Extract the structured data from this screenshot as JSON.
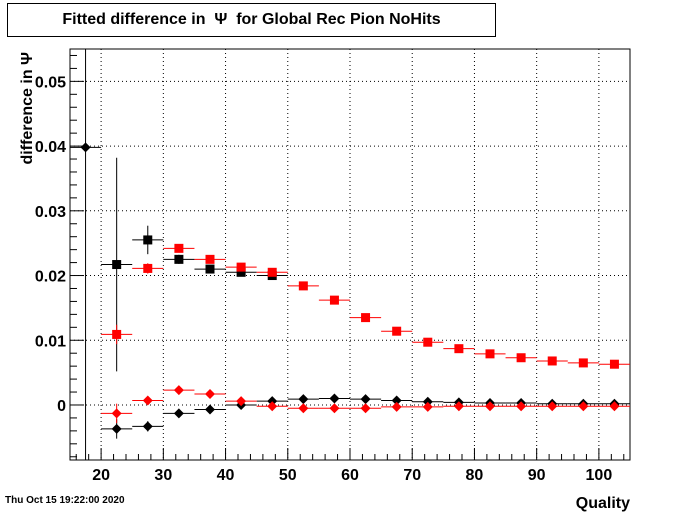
{
  "chart_data": {
    "type": "scatter",
    "title": "Fitted difference in  Ψ  for Global Rec Pion NoHits",
    "xlabel": "Quality",
    "ylabel": "difference in  Ψ",
    "xlim": [
      15,
      105
    ],
    "ylim": [
      -0.0085,
      0.055
    ],
    "x_ticks": [
      20,
      30,
      40,
      50,
      60,
      70,
      80,
      90,
      100
    ],
    "y_ticks": [
      0,
      0.01,
      0.02,
      0.03,
      0.04,
      0.05
    ],
    "y_tick_labels": [
      "0",
      "0.01",
      "0.02",
      "0.03",
      "0.04",
      "0.05"
    ],
    "grid": true,
    "series": [
      {
        "marker": "square",
        "color": "#000000",
        "points": [
          {
            "x": 22.5,
            "y": 0.0217,
            "xerr": 2.5,
            "yerr": 0.0165
          },
          {
            "x": 27.5,
            "y": 0.0255,
            "xerr": 2.5,
            "yerr": 0.0022
          },
          {
            "x": 32.5,
            "y": 0.0225,
            "xerr": 2.5,
            "yerr": 0.0007
          },
          {
            "x": 37.5,
            "y": 0.021,
            "xerr": 2.5,
            "yerr": 0.0005
          },
          {
            "x": 42.5,
            "y": 0.0205,
            "xerr": 2.5,
            "yerr": 0.0004
          },
          {
            "x": 47.5,
            "y": 0.02,
            "xerr": 2.5,
            "yerr": 0.0004
          }
        ]
      },
      {
        "marker": "square",
        "color": "#ff0000",
        "points": [
          {
            "x": 22.5,
            "y": 0.0109,
            "xerr": 2.5,
            "yerr": 0.0015
          },
          {
            "x": 27.5,
            "y": 0.0211,
            "xerr": 2.5,
            "yerr": 0.0008
          },
          {
            "x": 32.5,
            "y": 0.0242,
            "xerr": 2.5,
            "yerr": 0.0006
          },
          {
            "x": 37.5,
            "y": 0.0225,
            "xerr": 2.5,
            "yerr": 0.0004
          },
          {
            "x": 42.5,
            "y": 0.0213,
            "xerr": 2.5,
            "yerr": 0.0004
          },
          {
            "x": 47.5,
            "y": 0.0205,
            "xerr": 2.5,
            "yerr": 0.0003
          },
          {
            "x": 52.5,
            "y": 0.0184,
            "xerr": 2.5,
            "yerr": 0.0003
          },
          {
            "x": 57.5,
            "y": 0.0162,
            "xerr": 2.5,
            "yerr": 0.0003
          },
          {
            "x": 62.5,
            "y": 0.0135,
            "xerr": 2.5,
            "yerr": 0.0003
          },
          {
            "x": 67.5,
            "y": 0.0114,
            "xerr": 2.5,
            "yerr": 0.0003
          },
          {
            "x": 72.5,
            "y": 0.0097,
            "xerr": 2.5,
            "yerr": 0.0002
          },
          {
            "x": 77.5,
            "y": 0.0087,
            "xerr": 2.5,
            "yerr": 0.0002
          },
          {
            "x": 82.5,
            "y": 0.0079,
            "xerr": 2.5,
            "yerr": 0.0002
          },
          {
            "x": 87.5,
            "y": 0.0073,
            "xerr": 2.5,
            "yerr": 0.0002
          },
          {
            "x": 92.5,
            "y": 0.0068,
            "xerr": 2.5,
            "yerr": 0.0002
          },
          {
            "x": 97.5,
            "y": 0.0065,
            "xerr": 2.5,
            "yerr": 0.0002
          },
          {
            "x": 102.5,
            "y": 0.0063,
            "xerr": 2.5,
            "yerr": 0.0002
          }
        ]
      },
      {
        "marker": "diamond",
        "color": "#000000",
        "points": [
          {
            "x": 17.5,
            "y": 0.0398,
            "xerr": 2.5,
            "yerr": 0.055
          },
          {
            "x": 22.5,
            "y": -0.0037,
            "xerr": 2.5,
            "yerr": 0.0015
          },
          {
            "x": 27.5,
            "y": -0.0033,
            "xerr": 2.5,
            "yerr": 0.0008
          },
          {
            "x": 32.5,
            "y": -0.0013,
            "xerr": 2.5,
            "yerr": 0.0005
          },
          {
            "x": 37.5,
            "y": -0.0007,
            "xerr": 2.5,
            "yerr": 0.0003
          },
          {
            "x": 42.5,
            "y": 0.0,
            "xerr": 2.5,
            "yerr": 0.0003
          },
          {
            "x": 47.5,
            "y": 0.0006,
            "xerr": 2.5,
            "yerr": 0.0002
          },
          {
            "x": 52.5,
            "y": 0.0009,
            "xerr": 2.5,
            "yerr": 0.0002
          },
          {
            "x": 57.5,
            "y": 0.001,
            "xerr": 2.5,
            "yerr": 0.0002
          },
          {
            "x": 62.5,
            "y": 0.0009,
            "xerr": 2.5,
            "yerr": 0.0002
          },
          {
            "x": 67.5,
            "y": 0.0007,
            "xerr": 2.5,
            "yerr": 0.0002
          },
          {
            "x": 72.5,
            "y": 0.0005,
            "xerr": 2.5,
            "yerr": 0.0002
          },
          {
            "x": 77.5,
            "y": 0.0004,
            "xerr": 2.5,
            "yerr": 0.0002
          },
          {
            "x": 82.5,
            "y": 0.0003,
            "xerr": 2.5,
            "yerr": 0.0002
          },
          {
            "x": 87.5,
            "y": 0.0003,
            "xerr": 2.5,
            "yerr": 0.0002
          },
          {
            "x": 92.5,
            "y": 0.0002,
            "xerr": 2.5,
            "yerr": 0.0002
          },
          {
            "x": 97.5,
            "y": 0.0002,
            "xerr": 2.5,
            "yerr": 0.0002
          },
          {
            "x": 102.5,
            "y": 0.0002,
            "xerr": 2.5,
            "yerr": 0.0002
          }
        ]
      },
      {
        "marker": "diamond",
        "color": "#ff0000",
        "points": [
          {
            "x": 22.5,
            "y": -0.0013,
            "xerr": 2.5,
            "yerr": 0.0015
          },
          {
            "x": 27.5,
            "y": 0.0007,
            "xerr": 2.5,
            "yerr": 0.0005
          },
          {
            "x": 32.5,
            "y": 0.0023,
            "xerr": 2.5,
            "yerr": 0.0004
          },
          {
            "x": 37.5,
            "y": 0.0017,
            "xerr": 2.5,
            "yerr": 0.0003
          },
          {
            "x": 42.5,
            "y": 0.0006,
            "xerr": 2.5,
            "yerr": 0.0003
          },
          {
            "x": 47.5,
            "y": -0.0002,
            "xerr": 2.5,
            "yerr": 0.0002
          },
          {
            "x": 52.5,
            "y": -0.0005,
            "xerr": 2.5,
            "yerr": 0.0002
          },
          {
            "x": 57.5,
            "y": -0.0005,
            "xerr": 2.5,
            "yerr": 0.0002
          },
          {
            "x": 62.5,
            "y": -0.0005,
            "xerr": 2.5,
            "yerr": 0.0002
          },
          {
            "x": 67.5,
            "y": -0.0003,
            "xerr": 2.5,
            "yerr": 0.0002
          },
          {
            "x": 72.5,
            "y": -0.0003,
            "xerr": 2.5,
            "yerr": 0.0002
          },
          {
            "x": 77.5,
            "y": -0.0002,
            "xerr": 2.5,
            "yerr": 0.0002
          },
          {
            "x": 82.5,
            "y": -0.0002,
            "xerr": 2.5,
            "yerr": 0.0002
          },
          {
            "x": 87.5,
            "y": -0.0002,
            "xerr": 2.5,
            "yerr": 0.0002
          },
          {
            "x": 92.5,
            "y": -0.0002,
            "xerr": 2.5,
            "yerr": 0.0002
          },
          {
            "x": 97.5,
            "y": -0.0002,
            "xerr": 2.5,
            "yerr": 0.0002
          },
          {
            "x": 102.5,
            "y": -0.0002,
            "xerr": 2.5,
            "yerr": 0.0002
          }
        ]
      }
    ]
  },
  "timestamp": "Thu Oct 15 19:22:00 2020"
}
